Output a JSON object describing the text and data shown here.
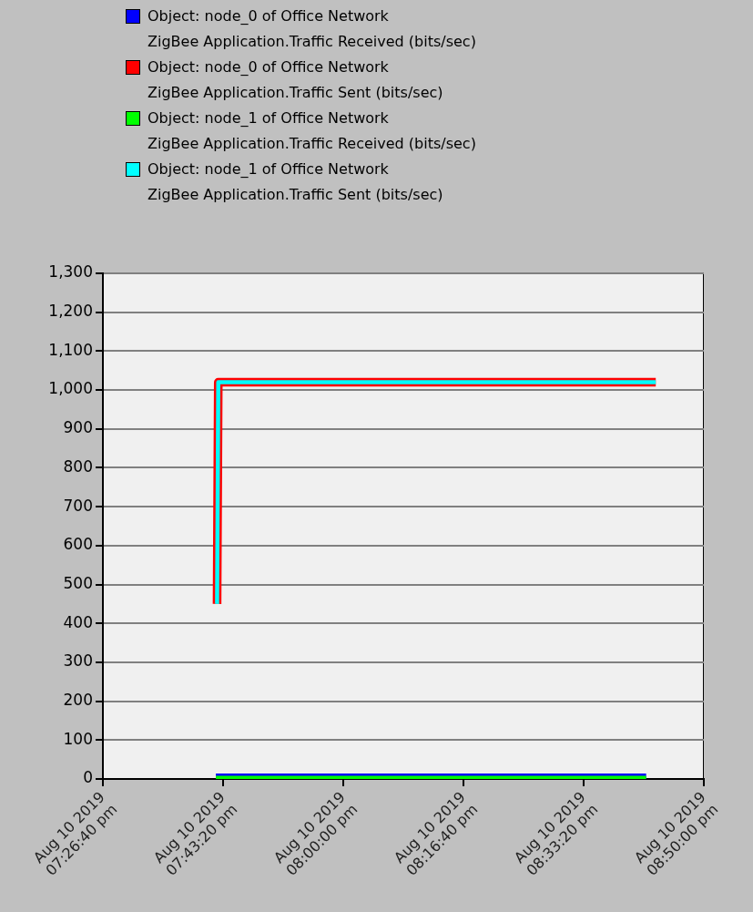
{
  "chart_data": {
    "type": "line",
    "legend": "top",
    "grid": "y",
    "xlim": [
      "2019-08-10T19:26:40",
      "2019-08-10T20:50:00"
    ],
    "xticks": [
      {
        "value": "2019-08-10T19:26:40",
        "label": "Aug 10 2019\n07:26:40 pm"
      },
      {
        "value": "2019-08-10T19:43:20",
        "label": "Aug 10 2019\n07:43:20 pm"
      },
      {
        "value": "2019-08-10T20:00:00",
        "label": "Aug 10 2019\n08:00:00 pm"
      },
      {
        "value": "2019-08-10T20:16:40",
        "label": "Aug 10 2019\n08:16:40 pm"
      },
      {
        "value": "2019-08-10T20:33:20",
        "label": "Aug 10 2019\n08:33:20 pm"
      },
      {
        "value": "2019-08-10T20:50:00",
        "label": "Aug 10 2019\n08:50:00 pm"
      }
    ],
    "ylim": [
      0,
      1300
    ],
    "yticks": [
      0,
      100,
      200,
      300,
      400,
      500,
      600,
      700,
      800,
      900,
      {
        "value": 1000,
        "label": "1,000"
      },
      {
        "value": 1100,
        "label": "1,100"
      },
      {
        "value": 1200,
        "label": "1,200"
      },
      {
        "value": 1300,
        "label": "1,300"
      }
    ],
    "series": [
      {
        "name": "Object: node_0 of Office Network\nZigBee Application.Traffic Received (bits/sec)",
        "color": "#0000ff",
        "x": [
          "2019-08-10T19:42:20",
          "2019-08-10T20:42:00"
        ],
        "values": [
          0,
          0
        ]
      },
      {
        "name": "Object: node_0 of Office Network\nZigBee Application.Traffic Sent (bits/sec)",
        "color": "#ff0000",
        "x": [
          "2019-08-10T19:42:30",
          "2019-08-10T19:42:40",
          "2019-08-10T20:43:20"
        ],
        "values": [
          450,
          1020,
          1020
        ]
      },
      {
        "name": "Object: node_1 of Office Network\nZigBee Application.Traffic Received (bits/sec)",
        "color": "#00ff00",
        "x": [
          "2019-08-10T19:42:20",
          "2019-08-10T20:42:00"
        ],
        "values": [
          0,
          0
        ]
      },
      {
        "name": "Object: node_1 of Office Network\nZigBee Application.Traffic Sent (bits/sec)",
        "color": "#00ffff",
        "x": [
          "2019-08-10T19:42:30",
          "2019-08-10T19:42:40",
          "2019-08-10T20:43:20"
        ],
        "values": [
          450,
          1020,
          1020
        ]
      }
    ]
  }
}
